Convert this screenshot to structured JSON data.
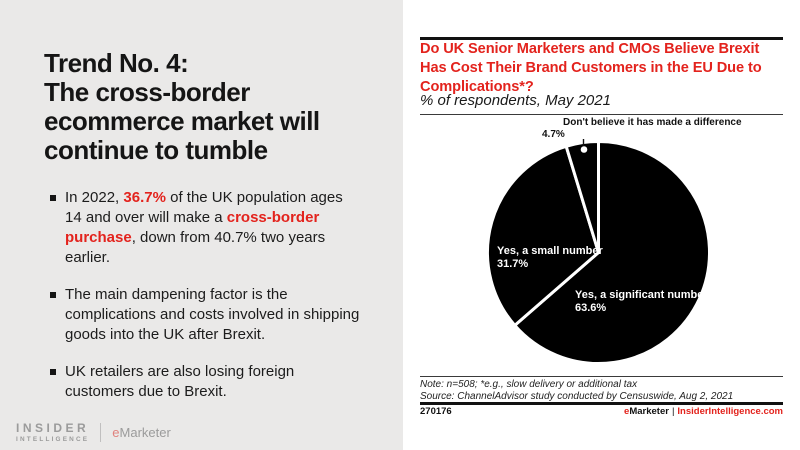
{
  "colors": {
    "accent_red": "#e3231d",
    "left_bg": "#eae9e8",
    "pie_fill": "#000000",
    "pie_separator": "#ffffff",
    "watermark_gray": "#9b9b9b"
  },
  "left_panel": {
    "title": "Trend No. 4:\nThe cross-border\necommerce market will\ncontinue to tumble",
    "bullets": [
      {
        "segments": [
          {
            "t": "In 2022, "
          },
          {
            "t": "36.7%",
            "s": "em"
          },
          {
            "t": " of the UK population ages 14 and over will make a "
          },
          {
            "t": "cross-border purchase",
            "s": "em"
          },
          {
            "t": ", down from 40.7% two years earlier."
          }
        ]
      },
      {
        "segments": [
          {
            "t": "The main dampening factor is the complications and costs involved in shipping goods into the UK after Brexit."
          }
        ]
      },
      {
        "segments": [
          {
            "t": "UK retailers are also losing foreign customers due to Brexit."
          }
        ]
      }
    ],
    "watermark": {
      "insider": "INSIDER",
      "intelligence": "INTELLIGENCE",
      "emarketer_e": "e",
      "emarketer_rest": "Marketer"
    }
  },
  "chart_panel": {
    "title": "Do UK Senior Marketers and CMOs Believe Brexit\nHas Cost Their Brand Customers in the EU Due to\nComplications*?",
    "subtitle": "% of respondents, May 2021",
    "note_line1": "Note: n=508; *e.g., slow delivery or additional tax",
    "note_line2": "Source: ChannelAdvisor study conducted by Censuswide, Aug 2, 2021",
    "chart_id": "270176",
    "brand_e": "e",
    "brand_rest": "Marketer",
    "brand_sep": "|",
    "brand_site": "InsiderIntelligence.com"
  },
  "chart_data": {
    "type": "pie",
    "title": "Do UK Senior Marketers and CMOs Believe Brexit Has Cost Their Brand Customers in the EU Due to Complications*?",
    "subtitle": "% of respondents, May 2021",
    "unit": "% of respondents",
    "start_angle_deg": 0,
    "direction": "clockwise",
    "slice_fill": "#000000",
    "separator_color": "#ffffff",
    "legend_position": "labels-on-chart",
    "slices": [
      {
        "label": "Yes, a significant number",
        "value": 63.6,
        "display": "63.6%"
      },
      {
        "label": "Yes, a small number",
        "value": 31.7,
        "display": "31.7%"
      },
      {
        "label": "Don't believe it has made a difference",
        "value": 4.7,
        "display": "4.7%"
      }
    ],
    "note": "Note: n=508; *e.g., slow delivery or additional tax",
    "source": "Source: ChannelAdvisor study conducted by Censuswide, Aug 2, 2021"
  }
}
